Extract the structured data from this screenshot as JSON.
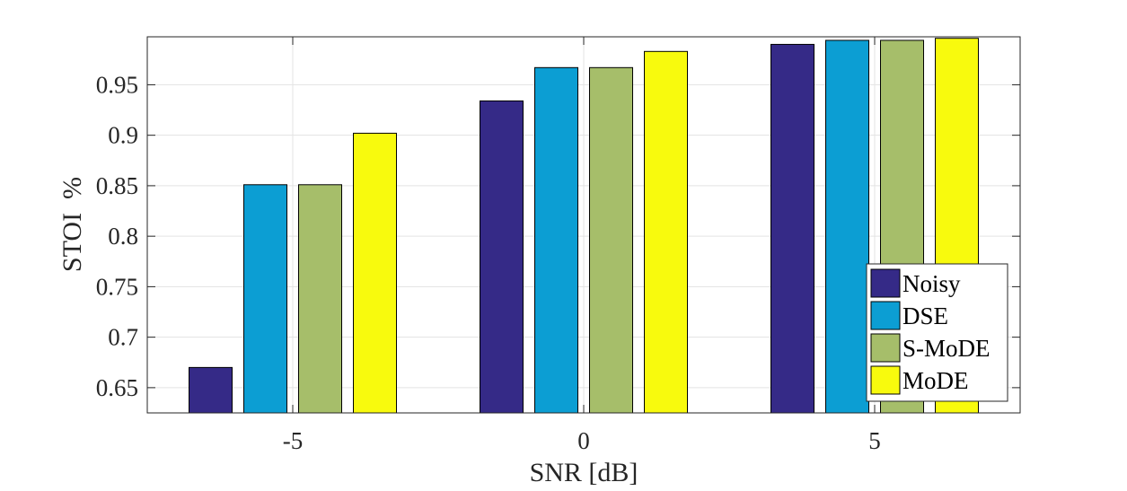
{
  "chart_data": {
    "type": "bar",
    "title": "",
    "xlabel": "SNR [dB]",
    "ylabel": "STOI  %",
    "categories": [
      "-5",
      "0",
      "5"
    ],
    "ylim": [
      0.625,
      0.9975
    ],
    "yticks": [
      0.65,
      0.7,
      0.75,
      0.8,
      0.85,
      0.9,
      0.95
    ],
    "ytick_labels": [
      "0.65",
      "0.7",
      "0.75",
      "0.8",
      "0.85",
      "0.9",
      "0.95"
    ],
    "grid": true,
    "legend_position": "bottom-right",
    "series": [
      {
        "name": "Noisy",
        "color": "#352a87",
        "values": [
          0.67,
          0.934,
          0.99
        ]
      },
      {
        "name": "DSE",
        "color": "#0c9ed3",
        "values": [
          0.851,
          0.967,
          0.994
        ]
      },
      {
        "name": "S-MoDE",
        "color": "#a6be6a",
        "values": [
          0.851,
          0.967,
          0.994
        ]
      },
      {
        "name": "MoDE",
        "color": "#f8fa0d",
        "values": [
          0.902,
          0.983,
          0.996
        ]
      }
    ]
  }
}
